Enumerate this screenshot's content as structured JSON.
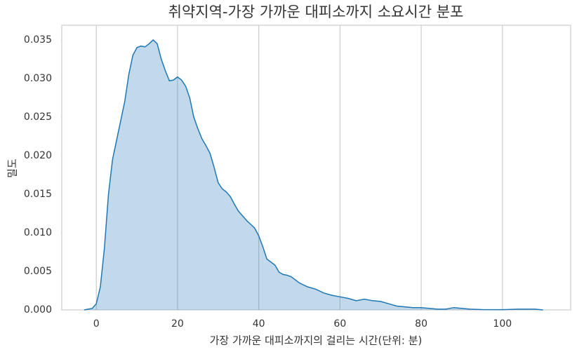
{
  "chart_data": {
    "type": "area",
    "title": "취약지역-가장 가까운 대피소까지 소요시간 분포",
    "xlabel": "가장 가까운 대피소까지의 걸리는 시간(단위: 분)",
    "ylabel": "밀도",
    "color": "#1f77b4",
    "grid": "x",
    "x": [
      -3,
      -1,
      0,
      1,
      2,
      3,
      4,
      5,
      6,
      7,
      8,
      9,
      10,
      11,
      12,
      13,
      14,
      15,
      16,
      17,
      18,
      19,
      20,
      21,
      22,
      23,
      24,
      25,
      26,
      27,
      28,
      29,
      30,
      31,
      32,
      33,
      34,
      35,
      36,
      37,
      38,
      39,
      40,
      41,
      42,
      43,
      44,
      45,
      46,
      47,
      48,
      49,
      50,
      52,
      54,
      56,
      58,
      60,
      62,
      64,
      66,
      68,
      70,
      72,
      74,
      76,
      78,
      80,
      82,
      84,
      86,
      88,
      90,
      92,
      95,
      100,
      104,
      108,
      110
    ],
    "values": [
      0,
      0.0002,
      0.0008,
      0.003,
      0.008,
      0.015,
      0.0195,
      0.022,
      0.0245,
      0.027,
      0.0305,
      0.033,
      0.034,
      0.0342,
      0.0341,
      0.0345,
      0.035,
      0.0345,
      0.0325,
      0.031,
      0.0297,
      0.0298,
      0.0302,
      0.0298,
      0.029,
      0.0275,
      0.025,
      0.0235,
      0.0222,
      0.0213,
      0.0203,
      0.0185,
      0.0165,
      0.0157,
      0.0153,
      0.0147,
      0.0137,
      0.0128,
      0.0122,
      0.0116,
      0.0111,
      0.0106,
      0.0096,
      0.0082,
      0.0066,
      0.0062,
      0.0058,
      0.0049,
      0.0046,
      0.0045,
      0.0043,
      0.0039,
      0.0035,
      0.003,
      0.0027,
      0.0022,
      0.0019,
      0.0017,
      0.0015,
      0.0012,
      0.0014,
      0.0012,
      0.0011,
      0.0008,
      0.0005,
      0.0004,
      0.0003,
      0.0003,
      0.0002,
      0.0001,
      0.0001,
      0.0003,
      0.0002,
      0.0001,
      5e-05,
      3e-05,
      0.0001,
      0.0001,
      0
    ],
    "xlim": [
      -8.5,
      116.8
    ],
    "ylim": [
      0,
      0.0369
    ],
    "xticks": [
      0,
      20,
      40,
      60,
      80,
      100
    ],
    "yticks": [
      {
        "value": 0,
        "label": "0.000"
      },
      0.005,
      {
        "value": 0.01,
        "label": "0.010"
      },
      0.015,
      {
        "value": 0.02,
        "label": "0.020"
      },
      0.025,
      {
        "value": 0.03,
        "label": "0.030"
      },
      0.035
    ]
  }
}
